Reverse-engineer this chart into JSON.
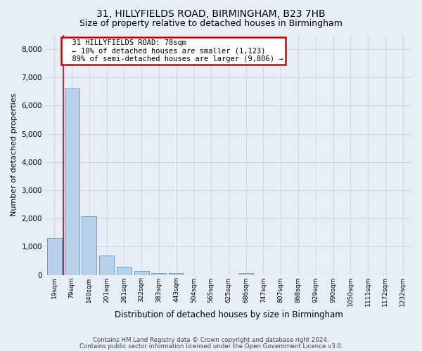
{
  "title1": "31, HILLYFIELDS ROAD, BIRMINGHAM, B23 7HB",
  "title2": "Size of property relative to detached houses in Birmingham",
  "xlabel": "Distribution of detached houses by size in Birmingham",
  "ylabel": "Number of detached properties",
  "bar_labels": [
    "19sqm",
    "79sqm",
    "140sqm",
    "201sqm",
    "261sqm",
    "322sqm",
    "383sqm",
    "443sqm",
    "504sqm",
    "565sqm",
    "625sqm",
    "686sqm",
    "747sqm",
    "807sqm",
    "868sqm",
    "929sqm",
    "990sqm",
    "1050sqm",
    "1111sqm",
    "1172sqm",
    "1232sqm"
  ],
  "bar_values": [
    1300,
    6600,
    2080,
    680,
    290,
    130,
    75,
    55,
    0,
    0,
    0,
    55,
    0,
    0,
    0,
    0,
    0,
    0,
    0,
    0,
    0
  ],
  "bar_color": "#b8d0ea",
  "bar_edge_color": "#6ba3c8",
  "annotation_text_line1": "31 HILLYFIELDS ROAD: 78sqm",
  "annotation_text_line2": "← 10% of detached houses are smaller (1,123)",
  "annotation_text_line3": "89% of semi-detached houses are larger (9,806) →",
  "annotation_box_color": "#ffffff",
  "annotation_box_edge": "#cc0000",
  "vline_color": "#cc0000",
  "ylim": [
    0,
    8500
  ],
  "yticks": [
    0,
    1000,
    2000,
    3000,
    4000,
    5000,
    6000,
    7000,
    8000
  ],
  "grid_color": "#ccd9e8",
  "background_color": "#e8eef6",
  "footer1": "Contains HM Land Registry data © Crown copyright and database right 2024.",
  "footer2": "Contains public sector information licensed under the Open Government Licence v3.0."
}
